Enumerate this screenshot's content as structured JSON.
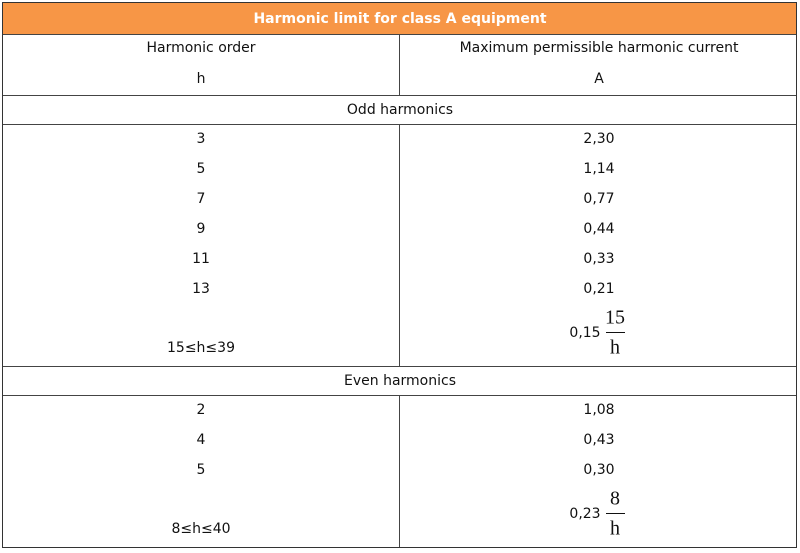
{
  "title": "Harmonic limit for class A equipment",
  "header": {
    "order": [
      "Harmonic order",
      "h"
    ],
    "current": [
      "Maximum permissible harmonic current",
      "A"
    ]
  },
  "sections": [
    {
      "label": "Odd harmonics",
      "rows": [
        [
          "3",
          "2,30"
        ],
        [
          "5",
          "1,14"
        ],
        [
          "7",
          "0,77"
        ],
        [
          "9",
          "0,44"
        ],
        [
          "11",
          "0,33"
        ],
        [
          "13",
          "0,21"
        ]
      ],
      "formula": {
        "order": "15≤h≤39",
        "coefficient": "0,15",
        "numerator": "15",
        "denominator": "h"
      }
    },
    {
      "label": "Even harmonics",
      "rows": [
        [
          "2",
          "1,08"
        ],
        [
          "4",
          "0,43"
        ],
        [
          "5",
          "0,30"
        ]
      ],
      "formula": {
        "order": "8≤h≤40",
        "coefficient": "0,23",
        "numerator": "8",
        "denominator": "h"
      }
    }
  ]
}
